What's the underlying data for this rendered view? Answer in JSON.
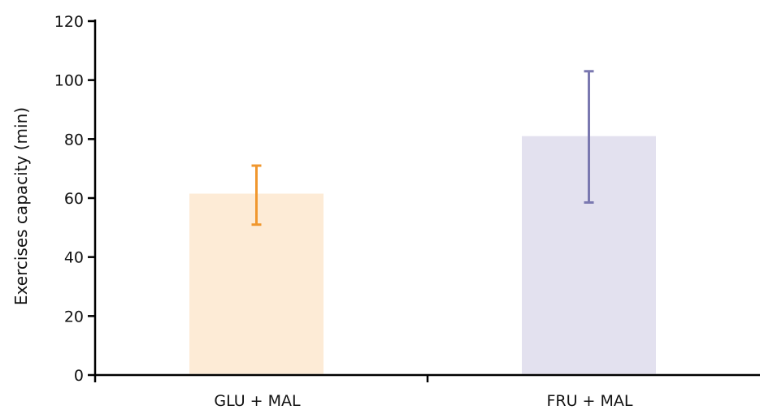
{
  "chart_data": {
    "type": "bar",
    "title": "",
    "xlabel": "",
    "ylabel": "Exercises capacity (min)",
    "ylim": [
      0,
      120
    ],
    "yticks": [
      0,
      20,
      40,
      60,
      80,
      100,
      120
    ],
    "grid": false,
    "legend": "none",
    "categories": [
      "GLU + MAL",
      "FRU + MAL"
    ],
    "values": [
      61.5,
      81
    ],
    "error_low": [
      51,
      58.5
    ],
    "error_high": [
      71,
      103
    ],
    "colors": {
      "bars": [
        "#fdebd6",
        "#e3e1ef"
      ],
      "error_bars": [
        "#f0972e",
        "#7a78b0"
      ],
      "axis": "#000000"
    }
  }
}
